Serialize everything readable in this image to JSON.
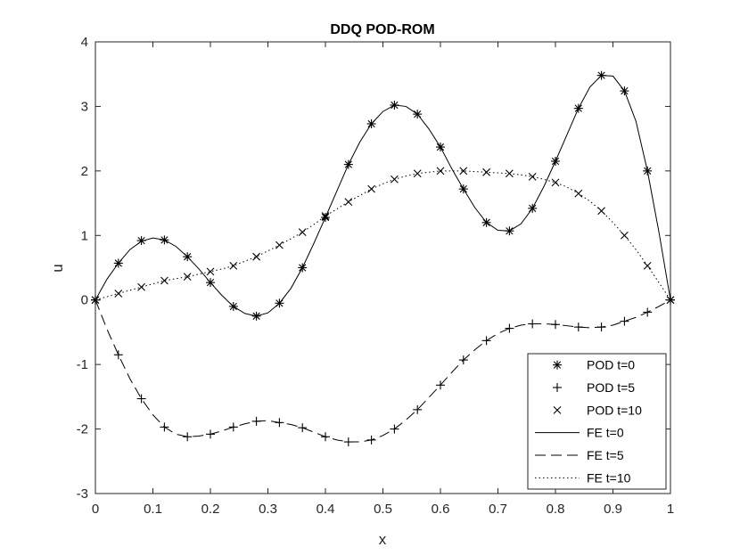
{
  "chart_data": {
    "type": "line",
    "title": "DDQ POD-ROM",
    "xlabel": "x",
    "ylabel": "u",
    "xlim": [
      0,
      1
    ],
    "ylim": [
      -3,
      4
    ],
    "xticks": [
      0,
      0.1,
      0.2,
      0.3,
      0.4,
      0.5,
      0.6,
      0.7,
      0.8,
      0.9,
      1
    ],
    "xtick_labels": [
      "0",
      "0.1",
      "0.2",
      "0.3",
      "0.4",
      "0.5",
      "0.6",
      "0.7",
      "0.8",
      "0.9",
      "1"
    ],
    "yticks": [
      -3,
      -2,
      -1,
      0,
      1,
      2,
      3,
      4
    ],
    "ytick_labels": [
      "-3",
      "-2",
      "-1",
      "0",
      "1",
      "2",
      "3",
      "4"
    ],
    "grid": false,
    "legend_position": "bottom-right",
    "series": [
      {
        "name": "POD t=0",
        "style": "marker-asterisk",
        "x": [
          0,
          0.04,
          0.08,
          0.12,
          0.16,
          0.2,
          0.24,
          0.28,
          0.32,
          0.36,
          0.4,
          0.44,
          0.48,
          0.52,
          0.56,
          0.6,
          0.64,
          0.68,
          0.72,
          0.76,
          0.8,
          0.84,
          0.88,
          0.92,
          0.96,
          1
        ],
        "values": [
          0,
          0.57,
          0.92,
          0.93,
          0.67,
          0.27,
          -0.1,
          -0.25,
          -0.05,
          0.5,
          1.28,
          2.1,
          2.73,
          3.02,
          2.88,
          2.37,
          1.72,
          1.2,
          1.07,
          1.42,
          2.15,
          2.97,
          3.48,
          3.24,
          2.0,
          0
        ]
      },
      {
        "name": "POD t=5",
        "style": "marker-plus",
        "x": [
          0,
          0.04,
          0.08,
          0.12,
          0.16,
          0.2,
          0.24,
          0.28,
          0.32,
          0.36,
          0.4,
          0.44,
          0.48,
          0.52,
          0.56,
          0.6,
          0.64,
          0.68,
          0.72,
          0.76,
          0.8,
          0.84,
          0.88,
          0.92,
          0.96,
          1
        ],
        "values": [
          0,
          -0.85,
          -1.53,
          -1.97,
          -2.12,
          -2.08,
          -1.97,
          -1.88,
          -1.9,
          -1.98,
          -2.12,
          -2.2,
          -2.17,
          -2.0,
          -1.7,
          -1.32,
          -0.93,
          -0.63,
          -0.44,
          -0.37,
          -0.38,
          -0.42,
          -0.42,
          -0.33,
          -0.19,
          0
        ]
      },
      {
        "name": "POD t=10",
        "style": "marker-x",
        "x": [
          0,
          0.04,
          0.08,
          0.12,
          0.16,
          0.2,
          0.24,
          0.28,
          0.32,
          0.36,
          0.4,
          0.44,
          0.48,
          0.52,
          0.56,
          0.6,
          0.64,
          0.68,
          0.72,
          0.76,
          0.8,
          0.84,
          0.88,
          0.92,
          0.96,
          1
        ],
        "values": [
          0,
          0.1,
          0.2,
          0.3,
          0.36,
          0.44,
          0.53,
          0.67,
          0.85,
          1.05,
          1.3,
          1.52,
          1.72,
          1.87,
          1.96,
          2.0,
          2.0,
          1.98,
          1.96,
          1.91,
          1.82,
          1.65,
          1.38,
          1.0,
          0.53,
          0
        ]
      },
      {
        "name": "FE t=0",
        "style": "line-solid",
        "x": [
          0,
          0.02,
          0.04,
          0.06,
          0.08,
          0.1,
          0.12,
          0.14,
          0.16,
          0.18,
          0.2,
          0.22,
          0.24,
          0.26,
          0.28,
          0.3,
          0.32,
          0.34,
          0.36,
          0.38,
          0.4,
          0.42,
          0.44,
          0.46,
          0.48,
          0.5,
          0.52,
          0.54,
          0.56,
          0.58,
          0.6,
          0.62,
          0.64,
          0.66,
          0.68,
          0.7,
          0.72,
          0.74,
          0.76,
          0.78,
          0.8,
          0.82,
          0.84,
          0.86,
          0.88,
          0.9,
          0.92,
          0.94,
          0.96,
          0.98,
          1
        ],
        "values": [
          0,
          0.32,
          0.57,
          0.78,
          0.91,
          0.96,
          0.93,
          0.83,
          0.67,
          0.48,
          0.27,
          0.07,
          -0.1,
          -0.21,
          -0.25,
          -0.2,
          -0.05,
          0.18,
          0.5,
          0.88,
          1.28,
          1.69,
          2.1,
          2.45,
          2.73,
          2.92,
          3.02,
          3.0,
          2.88,
          2.65,
          2.37,
          2.03,
          1.72,
          1.43,
          1.2,
          1.08,
          1.07,
          1.18,
          1.42,
          1.76,
          2.15,
          2.56,
          2.97,
          3.3,
          3.48,
          3.47,
          3.24,
          2.77,
          2.0,
          1.05,
          0
        ]
      },
      {
        "name": "FE t=5",
        "style": "line-dashed",
        "x": [
          0,
          0.02,
          0.04,
          0.06,
          0.08,
          0.1,
          0.12,
          0.14,
          0.16,
          0.18,
          0.2,
          0.22,
          0.24,
          0.26,
          0.28,
          0.3,
          0.32,
          0.34,
          0.36,
          0.38,
          0.4,
          0.42,
          0.44,
          0.46,
          0.48,
          0.5,
          0.52,
          0.54,
          0.56,
          0.58,
          0.6,
          0.62,
          0.64,
          0.66,
          0.68,
          0.7,
          0.72,
          0.74,
          0.76,
          0.78,
          0.8,
          0.82,
          0.84,
          0.86,
          0.88,
          0.9,
          0.92,
          0.94,
          0.96,
          0.98,
          1
        ],
        "values": [
          0,
          -0.45,
          -0.85,
          -1.22,
          -1.53,
          -1.78,
          -1.97,
          -2.08,
          -2.12,
          -2.11,
          -2.08,
          -2.03,
          -1.97,
          -1.92,
          -1.88,
          -1.87,
          -1.9,
          -1.93,
          -1.98,
          -2.05,
          -2.12,
          -2.17,
          -2.2,
          -2.2,
          -2.17,
          -2.1,
          -2.0,
          -1.86,
          -1.7,
          -1.51,
          -1.32,
          -1.12,
          -0.93,
          -0.77,
          -0.63,
          -0.52,
          -0.44,
          -0.39,
          -0.37,
          -0.37,
          -0.38,
          -0.4,
          -0.42,
          -0.43,
          -0.42,
          -0.39,
          -0.33,
          -0.27,
          -0.19,
          -0.1,
          0
        ]
      },
      {
        "name": "FE t=10",
        "style": "line-dotted",
        "x": [
          0,
          0.02,
          0.04,
          0.06,
          0.08,
          0.1,
          0.12,
          0.14,
          0.16,
          0.18,
          0.2,
          0.22,
          0.24,
          0.26,
          0.28,
          0.3,
          0.32,
          0.34,
          0.36,
          0.38,
          0.4,
          0.42,
          0.44,
          0.46,
          0.48,
          0.5,
          0.52,
          0.54,
          0.56,
          0.58,
          0.6,
          0.62,
          0.64,
          0.66,
          0.68,
          0.7,
          0.72,
          0.74,
          0.76,
          0.78,
          0.8,
          0.82,
          0.84,
          0.86,
          0.88,
          0.9,
          0.92,
          0.94,
          0.96,
          0.98,
          1
        ],
        "values": [
          0,
          0.05,
          0.1,
          0.15,
          0.2,
          0.25,
          0.3,
          0.33,
          0.36,
          0.4,
          0.44,
          0.48,
          0.53,
          0.6,
          0.67,
          0.76,
          0.85,
          0.95,
          1.05,
          1.17,
          1.3,
          1.41,
          1.52,
          1.62,
          1.72,
          1.8,
          1.87,
          1.92,
          1.96,
          1.98,
          2.0,
          2.0,
          2.0,
          1.99,
          1.98,
          1.97,
          1.96,
          1.94,
          1.91,
          1.87,
          1.82,
          1.75,
          1.65,
          1.53,
          1.38,
          1.2,
          1.0,
          0.78,
          0.53,
          0.27,
          0
        ]
      }
    ]
  }
}
